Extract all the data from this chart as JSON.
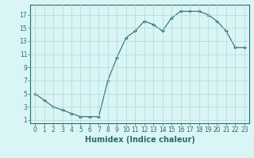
{
  "x": [
    0,
    1,
    2,
    3,
    4,
    5,
    6,
    7,
    8,
    9,
    10,
    11,
    12,
    13,
    14,
    15,
    16,
    17,
    18,
    19,
    20,
    21,
    22,
    23
  ],
  "y": [
    5,
    4,
    3,
    2.5,
    2,
    1.5,
    1.5,
    1.5,
    7,
    10.5,
    13.5,
    14.5,
    16,
    15.5,
    14.5,
    16.5,
    17.5,
    17.5,
    17.5,
    17,
    16,
    14.5,
    12,
    12
  ],
  "line_color": "#2d6b6b",
  "marker": "D",
  "marker_size": 2,
  "background_color": "#d9f5f5",
  "grid_color": "#b0d8d8",
  "xlabel": "Humidex (Indice chaleur)",
  "xlim": [
    -0.5,
    23.5
  ],
  "ylim": [
    0.5,
    18.5
  ],
  "yticks": [
    1,
    3,
    5,
    7,
    9,
    11,
    13,
    15,
    17
  ],
  "xticks": [
    0,
    1,
    2,
    3,
    4,
    5,
    6,
    7,
    8,
    9,
    10,
    11,
    12,
    13,
    14,
    15,
    16,
    17,
    18,
    19,
    20,
    21,
    22,
    23
  ],
  "tick_fontsize": 5.5,
  "label_fontsize": 7
}
